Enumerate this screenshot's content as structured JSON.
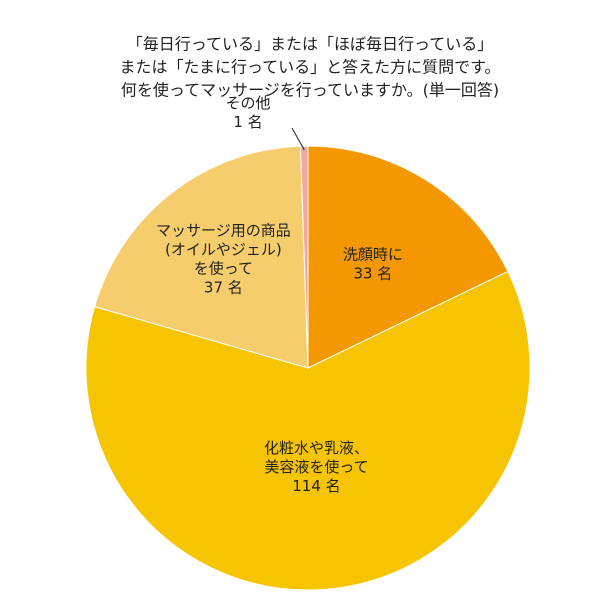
{
  "chart_data": {
    "type": "pie",
    "title": [
      "「毎日行っている」または「ほぼ毎日行っている」",
      "または「たまに行っている」と答えた方に質問です。",
      "何を使ってマッサージを行っていますか。(単一回答)"
    ],
    "categories": [
      [
        "洗顔時に"
      ],
      [
        "化粧水や乳液、",
        "美容液を使って"
      ],
      [
        "マッサージ用の商品",
        "(オイルやジェル)",
        "を使って"
      ],
      [
        "その他"
      ]
    ],
    "values": [
      33,
      114,
      37,
      1
    ],
    "value_labels": [
      "33 名",
      "114 名",
      "37 名",
      "1 名"
    ],
    "colors": [
      "#f39800",
      "#f6c400",
      "#f5cd6c",
      "#f2a7a6"
    ]
  }
}
